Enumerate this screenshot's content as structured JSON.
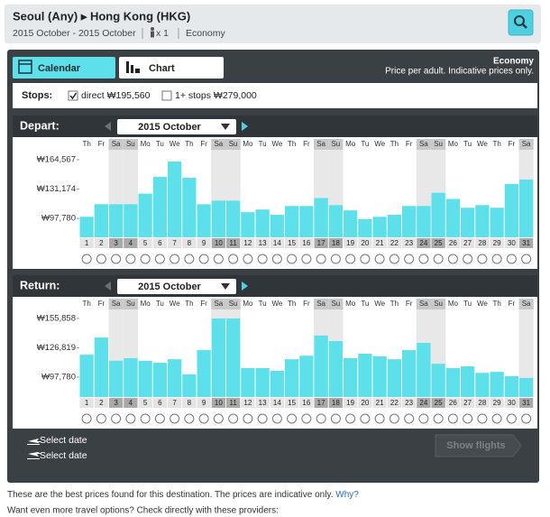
{
  "header": {
    "title": "Seoul (Any) ▸ Hong Kong (HKG)",
    "dates": "2015 October - 2015 October",
    "passengers": "x 1",
    "cabin": "Economy"
  },
  "tabs": [
    "Calendar",
    "Chart"
  ],
  "notice": {
    "cabin": "Economy",
    "note": "Price per adult. Indicative prices only."
  },
  "stops": {
    "label": "Stops:",
    "options": [
      {
        "label": "direct ₩195,560",
        "checked": true
      },
      {
        "label": "1+ stops ₩279,000",
        "checked": false
      }
    ]
  },
  "chart_data": [
    {
      "type": "bar",
      "label": "Depart:",
      "month": "2015 October",
      "color": "#5ee0ea",
      "categories": [
        "1",
        "2",
        "3",
        "4",
        "5",
        "6",
        "7",
        "8",
        "9",
        "10",
        "11",
        "12",
        "13",
        "14",
        "15",
        "16",
        "17",
        "18",
        "19",
        "20",
        "21",
        "22",
        "23",
        "24",
        "25",
        "26",
        "27",
        "28",
        "29",
        "30",
        "31"
      ],
      "weekdays": [
        "Th",
        "Fr",
        "Sa",
        "Su",
        "Mo",
        "Tu",
        "We",
        "Th",
        "Fr",
        "Sa",
        "Su",
        "Mo",
        "Tu",
        "We",
        "Th",
        "Fr",
        "Sa",
        "Su",
        "Mo",
        "Tu",
        "We",
        "Th",
        "Fr",
        "Sa",
        "Su",
        "Mo",
        "Tu",
        "We",
        "Th",
        "Fr",
        "Sa"
      ],
      "weekend_days": [
        2,
        3,
        9,
        10,
        16,
        17,
        23,
        24,
        30
      ],
      "values": [
        99800,
        114000,
        114000,
        114000,
        126000,
        145000,
        162500,
        144000,
        114000,
        118000,
        118000,
        105000,
        108000,
        102000,
        112000,
        112000,
        121000,
        113000,
        107000,
        97000,
        99800,
        102000,
        112000,
        112000,
        127000,
        120000,
        110000,
        113000,
        110000,
        137000,
        142000
      ],
      "ylim": [
        76500,
        173700
      ],
      "yticks": [
        {
          "value": 97780,
          "label": "₩97,780"
        },
        {
          "value": 131174,
          "label": "₩131,174"
        },
        {
          "value": 164567,
          "label": "₩164,567"
        }
      ]
    },
    {
      "type": "bar",
      "label": "Return:",
      "month": "2015 October",
      "color": "#5ee0ea",
      "categories": [
        "1",
        "2",
        "3",
        "4",
        "5",
        "6",
        "7",
        "8",
        "9",
        "10",
        "11",
        "12",
        "13",
        "14",
        "15",
        "16",
        "17",
        "18",
        "19",
        "20",
        "21",
        "22",
        "23",
        "24",
        "25",
        "26",
        "27",
        "28",
        "29",
        "30",
        "31"
      ],
      "weekdays": [
        "Th",
        "Fr",
        "Sa",
        "Su",
        "Mo",
        "Tu",
        "We",
        "Th",
        "Fr",
        "Sa",
        "Su",
        "Mo",
        "Tu",
        "We",
        "Th",
        "Fr",
        "Sa",
        "Su",
        "Mo",
        "Tu",
        "We",
        "Th",
        "Fr",
        "Sa",
        "Su",
        "Mo",
        "Tu",
        "We",
        "Th",
        "Fr",
        "Sa"
      ],
      "weekend_days": [
        2,
        3,
        9,
        10,
        16,
        17,
        23,
        24,
        30
      ],
      "values": [
        120000,
        137000,
        114000,
        116500,
        114000,
        112000,
        115500,
        100500,
        124500,
        155858,
        155858,
        106700,
        106700,
        104000,
        115500,
        119000,
        139000,
        133500,
        116500,
        121000,
        118300,
        115500,
        124500,
        131700,
        111000,
        106700,
        108500,
        102000,
        103000,
        98700,
        97000
      ],
      "ylim": [
        78100,
        163000
      ],
      "yticks": [
        {
          "value": 97780,
          "label": "₩97,780"
        },
        {
          "value": 126819,
          "label": "₩126,819"
        },
        {
          "value": 155858,
          "label": "₩155,858"
        }
      ]
    }
  ],
  "select_date": [
    "Select date",
    "Select date"
  ],
  "button": "Show flights",
  "footnote": {
    "text": "These are the best prices found for this destination. The prices are indicative only.",
    "link": "Why?"
  },
  "providers_note": "Want even more travel options? Check directly with these providers:"
}
